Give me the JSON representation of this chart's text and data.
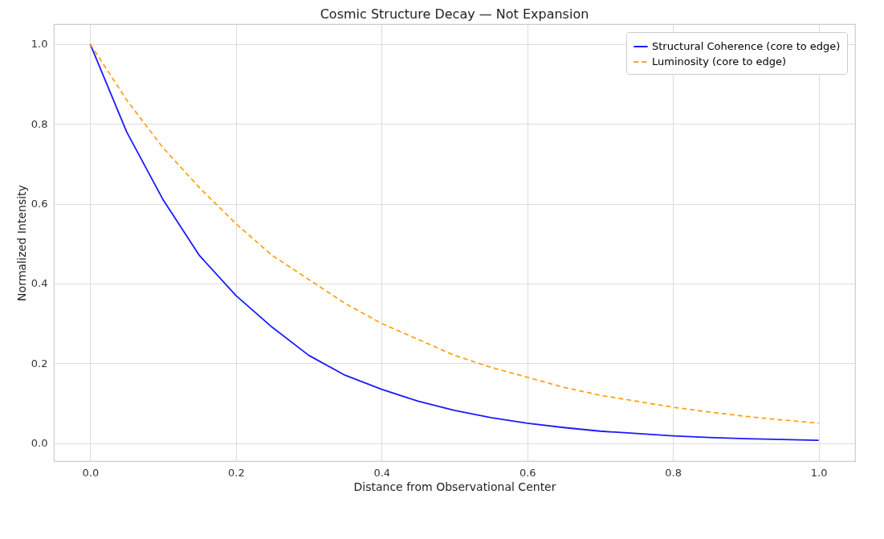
{
  "chart_data": {
    "type": "line",
    "title": "Cosmic Structure Decay — Not Expansion",
    "xlabel": "Distance from Observational Center",
    "ylabel": "Normalized Intensity",
    "x": [
      0,
      0.05,
      0.1,
      0.15,
      0.2,
      0.25,
      0.3,
      0.35,
      0.4,
      0.45,
      0.5,
      0.55,
      0.6,
      0.65,
      0.7,
      0.75,
      0.8,
      0.85,
      0.9,
      0.95,
      1.0
    ],
    "series": [
      {
        "name": "Structural Coherence (core to edge)",
        "color": "#1a1aff",
        "line_style": "solid",
        "values": [
          1.0,
          0.78,
          0.61,
          0.47,
          0.37,
          0.29,
          0.22,
          0.17,
          0.135,
          0.105,
          0.082,
          0.064,
          0.05,
          0.039,
          0.03,
          0.024,
          0.018,
          0.014,
          0.011,
          0.009,
          0.007
        ]
      },
      {
        "name": "Luminosity (core to edge)",
        "color": "#ffa31a",
        "line_style": "dashed",
        "values": [
          1.0,
          0.86,
          0.74,
          0.64,
          0.55,
          0.47,
          0.41,
          0.35,
          0.3,
          0.26,
          0.22,
          0.19,
          0.165,
          0.14,
          0.12,
          0.105,
          0.09,
          0.078,
          0.067,
          0.058,
          0.05
        ]
      }
    ],
    "xlim": [
      -0.05,
      1.05
    ],
    "ylim": [
      -0.045,
      1.05
    ],
    "xticks": [
      {
        "value": 0,
        "label": "0.0"
      },
      0.2,
      0.4,
      0.6,
      0.8,
      {
        "value": 1,
        "label": "1.0"
      }
    ],
    "yticks": [
      {
        "value": 0,
        "label": "0.0"
      },
      0.2,
      0.4,
      0.6,
      0.8,
      {
        "value": 1,
        "label": "1.0"
      }
    ],
    "grid": true,
    "legend": "top right",
    "marker": "none"
  }
}
